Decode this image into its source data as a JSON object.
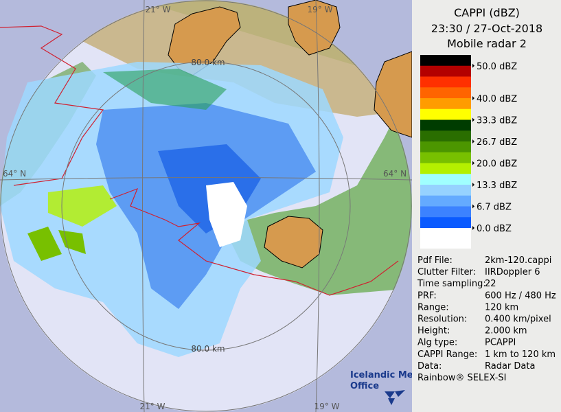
{
  "map": {
    "lon_labels_top": [
      "21° W",
      "19° W"
    ],
    "lon_labels_bottom": [
      "21° W",
      "19° W"
    ],
    "lat_labels": [
      "64° N",
      "64° N"
    ],
    "range_labels": [
      "80.0 km",
      "80.0 km"
    ],
    "logo": [
      "Icelandic Met",
      "Office"
    ]
  },
  "panel": {
    "title": [
      "CAPPI (dBZ)",
      "23:30 / 27-Oct-2018",
      "Mobile radar 2"
    ],
    "legend": {
      "colors": [
        "#000000",
        "#b40000",
        "#ff3000",
        "#ff6400",
        "#ff9c00",
        "#ffff00",
        "#003c00",
        "#2a6e00",
        "#4c9600",
        "#78c000",
        "#b4f000",
        "#a0ffff",
        "#96d2ff",
        "#64aaff",
        "#3c82ff",
        "#0a5aff"
      ],
      "labels": [
        "50.0 dBZ",
        "40.0 dBZ",
        "33.3 dBZ",
        "26.7 dBZ",
        "20.0 dBZ",
        "13.3 dBZ",
        "6.7 dBZ",
        "0.0 dBZ"
      ]
    },
    "info": [
      [
        "Pdf File:",
        "2km-120.cappi"
      ],
      [
        "Clutter Filter:",
        "IIRDoppler 6"
      ],
      [
        "Time sampling:",
        "22"
      ],
      [
        "PRF:",
        "600 Hz / 480 Hz"
      ],
      [
        "Range:",
        "120 km"
      ],
      [
        "Resolution:",
        "0.400 km/pixel"
      ],
      [
        "Height:",
        "2.000 km"
      ],
      [
        "Alg type:",
        "PCAPPI"
      ],
      [
        "CAPPI Range:",
        "1 km to 120 km"
      ],
      [
        "Data:",
        "Radar Data"
      ]
    ],
    "footer": "Rainbow® SELEX-SI"
  }
}
